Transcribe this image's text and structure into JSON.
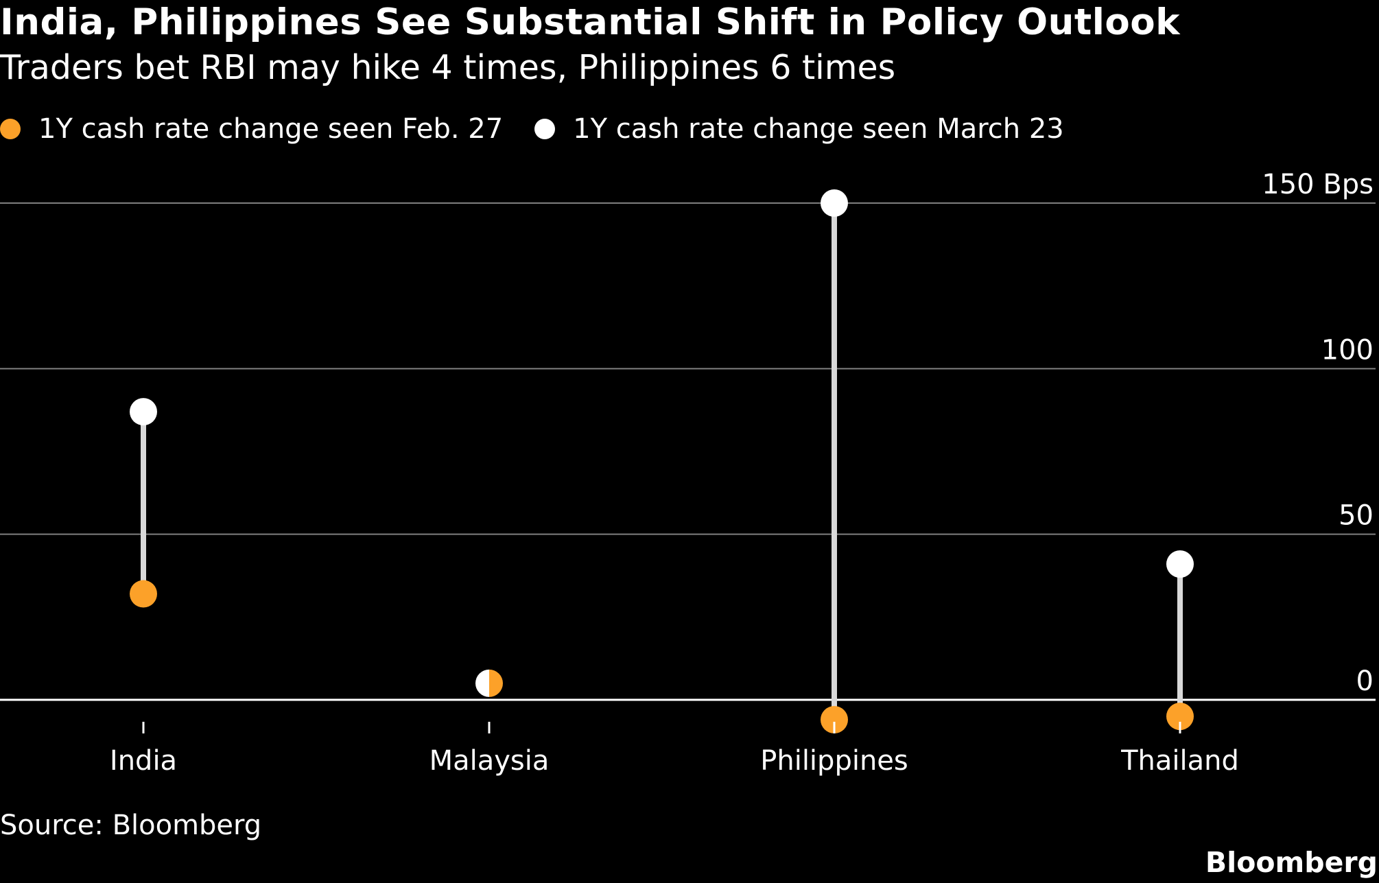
{
  "header": {
    "title": "India, Philippines See Substantial Shift in Policy Outlook",
    "subtitle": "Traders bet RBI may hike 4 times, Philippines 6 times"
  },
  "legend": {
    "items": [
      {
        "label": "1Y cash rate change seen Feb. 27",
        "color": "#fca129"
      },
      {
        "label": "1Y cash rate change seen March 23",
        "color": "#ffffff"
      }
    ]
  },
  "footer": {
    "source": "Source: Bloomberg",
    "brand": "Bloomberg"
  },
  "chart_data": {
    "type": "dot-range",
    "title": "India, Philippines See Substantial Shift in Policy Outlook",
    "subtitle": "Traders bet RBI may hike 4 times, Philippines 6 times",
    "xlabel": "",
    "ylabel": "Bps",
    "ylim": [
      0,
      150
    ],
    "yticks": [
      {
        "value": 0,
        "label": "0"
      },
      {
        "value": 50,
        "label": "50"
      },
      {
        "value": 100,
        "label": "100"
      },
      {
        "value": 150,
        "label": "150 Bps"
      }
    ],
    "categories": [
      "India",
      "Malaysia",
      "Philippines",
      "Thailand"
    ],
    "series": [
      {
        "name": "1Y cash rate change seen Feb. 27",
        "color": "#fca129",
        "values": [
          32,
          5,
          -6,
          -5
        ]
      },
      {
        "name": "1Y cash rate change seen March 23",
        "color": "#ffffff",
        "values": [
          87,
          5,
          150,
          41
        ]
      }
    ],
    "colors": {
      "connector": "#d9d9d9",
      "grid": "#7f7f7f",
      "baseline": "#ffffff"
    }
  }
}
